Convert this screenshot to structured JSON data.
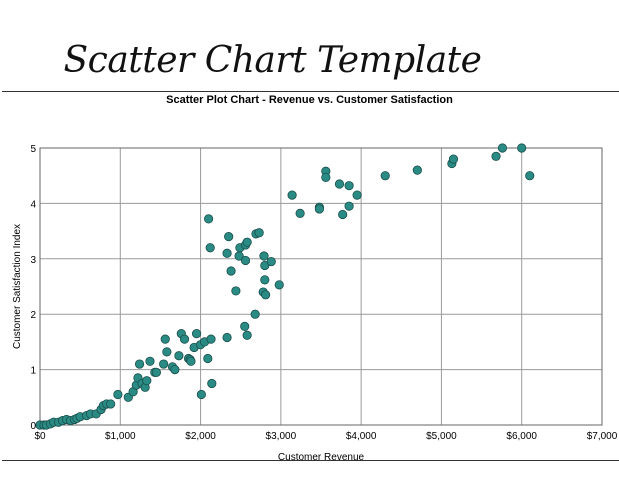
{
  "page": {
    "title": "Scatter Chart Template"
  },
  "colors": {
    "point_fill": "#2a8a84",
    "point_stroke": "#1b4f4c",
    "grid": "#9a9a9a",
    "frame": "#666666"
  },
  "chart_data": {
    "type": "scatter",
    "title": "Scatter Plot Chart -  Revenue vs. Customer Satisfaction",
    "xlabel": "Customer Revenue",
    "ylabel": "Customer Satisfaction Index",
    "xlim": [
      0,
      7000
    ],
    "ylim": [
      0,
      5
    ],
    "grid": true,
    "x_ticks": [
      "$0",
      "$1,000",
      "$2,000",
      "$3,000",
      "$4,000",
      "$5,000",
      "$6,000",
      "$7,000"
    ],
    "y_ticks": [
      "0",
      "1",
      "2",
      "3",
      "4",
      "5"
    ],
    "series": [
      {
        "x": [
          0,
          50,
          80,
          130,
          170,
          230,
          280,
          330,
          380,
          430,
          460,
          500,
          580,
          630,
          700,
          760,
          790,
          830,
          880,
          970,
          1100,
          1160,
          1200,
          1220,
          1240,
          1270,
          1310,
          1330,
          1370,
          1430,
          1450,
          1540,
          1560,
          1580,
          1650,
          1680,
          1730,
          1760,
          1800,
          1850,
          1870,
          1880,
          1920,
          1950,
          2000,
          2010,
          2050,
          2090,
          2100,
          2120,
          2140,
          2130,
          2330,
          2330,
          2350,
          2380,
          2440,
          2480,
          2490,
          2550,
          2560,
          2580,
          2560,
          2580,
          2680,
          2690,
          2730,
          2780,
          2790,
          2800,
          2800,
          2810,
          2880,
          2980,
          3140,
          3240,
          3480,
          3480,
          3560,
          3560,
          3730,
          3770,
          3850,
          3850,
          3950,
          4300,
          4700,
          5130,
          5150,
          5680,
          5760,
          6000,
          6100
        ],
        "y": [
          0,
          0,
          0,
          0.02,
          0.05,
          0.05,
          0.08,
          0.1,
          0.08,
          0.1,
          0.12,
          0.15,
          0.17,
          0.2,
          0.2,
          0.28,
          0.35,
          0.38,
          0.38,
          0.55,
          0.5,
          0.6,
          0.72,
          0.85,
          1.1,
          0.75,
          0.68,
          0.8,
          1.15,
          0.95,
          0.95,
          1.1,
          1.55,
          1.32,
          1.05,
          1.0,
          1.25,
          1.65,
          1.55,
          1.2,
          1.18,
          1.15,
          1.4,
          1.65,
          1.45,
          0.55,
          1.5,
          1.2,
          3.72,
          3.2,
          0.75,
          1.55,
          1.58,
          3.1,
          3.4,
          2.78,
          2.42,
          3.05,
          3.2,
          1.78,
          3.25,
          3.3,
          2.97,
          1.62,
          2.0,
          3.45,
          3.47,
          2.4,
          3.05,
          2.62,
          2.88,
          2.35,
          2.95,
          2.53,
          4.15,
          3.82,
          3.93,
          3.9,
          4.58,
          4.47,
          4.35,
          3.8,
          4.32,
          3.95,
          4.15,
          4.5,
          4.6,
          4.72,
          4.8,
          4.85,
          5.0,
          5.0,
          4.5
        ]
      }
    ]
  }
}
